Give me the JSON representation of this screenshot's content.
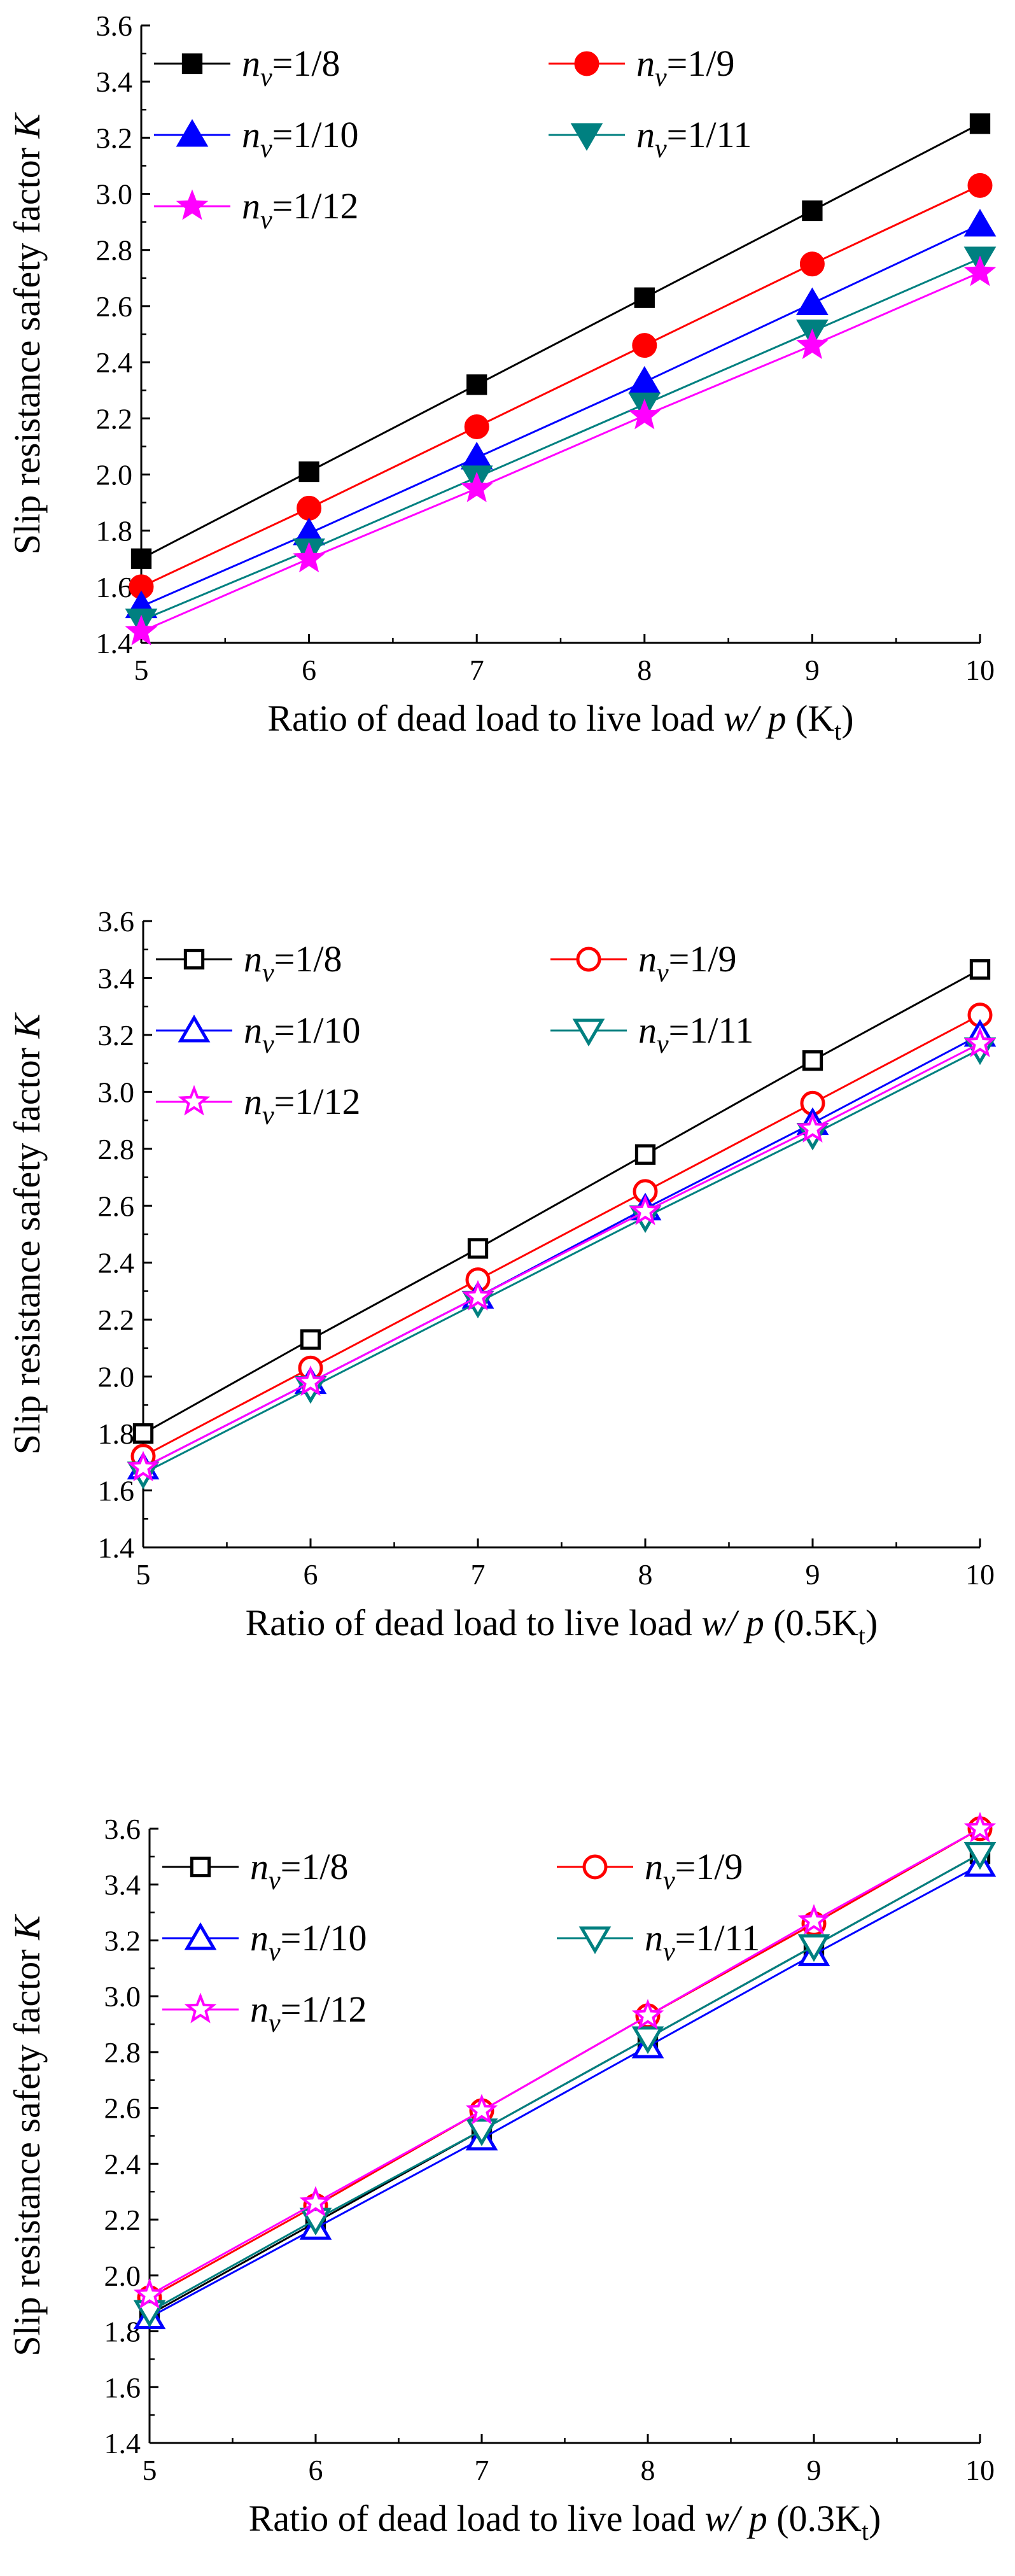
{
  "chart_data": [
    {
      "type": "line",
      "panel_label": "(K",
      "panel_label_sub": "t",
      "panel_label_end": ")",
      "xlabel": "Ratio of dead load to live load",
      "xlabel_var": "w/ p",
      "ylabel": "Slip resistance safety factor",
      "ylabel_var": "K",
      "xlim": [
        5,
        10
      ],
      "ylim": [
        1.4,
        3.6
      ],
      "x_ticks": [
        "5",
        "6",
        "7",
        "8",
        "9",
        "10"
      ],
      "y_ticks": [
        "1.4",
        "1.6",
        "1.8",
        "2.0",
        "2.2",
        "2.4",
        "2.6",
        "2.8",
        "3.0",
        "3.2",
        "3.4",
        "3.6"
      ],
      "grid": false,
      "legend_position": "top-left",
      "x": [
        5,
        6,
        7,
        8,
        9,
        10
      ],
      "series": [
        {
          "label_var": "n",
          "label_sub": "v",
          "label_rest": "=1/8",
          "color": "#000000",
          "marker": "square",
          "filled": true,
          "values": [
            1.7,
            2.01,
            2.32,
            2.63,
            2.94,
            3.25
          ]
        },
        {
          "label_var": "n",
          "label_sub": "v",
          "label_rest": "=1/9",
          "color": "#ff0000",
          "marker": "circle",
          "filled": true,
          "values": [
            1.6,
            1.88,
            2.17,
            2.46,
            2.75,
            3.03
          ]
        },
        {
          "label_var": "n",
          "label_sub": "v",
          "label_rest": "=1/10",
          "color": "#0000ff",
          "marker": "triangle-up",
          "filled": true,
          "values": [
            1.53,
            1.79,
            2.06,
            2.33,
            2.61,
            2.89
          ]
        },
        {
          "label_var": "n",
          "label_sub": "v",
          "label_rest": "=1/11",
          "color": "#008080",
          "marker": "triangle-down",
          "filled": true,
          "values": [
            1.48,
            1.73,
            1.99,
            2.25,
            2.51,
            2.77
          ]
        },
        {
          "label_var": "n",
          "label_sub": "v",
          "label_rest": "=1/12",
          "color": "#ff00ff",
          "marker": "star",
          "filled": true,
          "values": [
            1.44,
            1.7,
            1.95,
            2.21,
            2.46,
            2.72
          ]
        }
      ]
    },
    {
      "type": "line",
      "panel_label": "(0.5K",
      "panel_label_sub": "t",
      "panel_label_end": ")",
      "xlabel": "Ratio of dead load to live load",
      "xlabel_var": "w/ p",
      "ylabel": "Slip resistance safety factor",
      "ylabel_var": "K",
      "xlim": [
        5,
        10
      ],
      "ylim": [
        1.4,
        3.6
      ],
      "x_ticks": [
        "5",
        "6",
        "7",
        "8",
        "9",
        "10"
      ],
      "y_ticks": [
        "1.4",
        "1.6",
        "1.8",
        "2.0",
        "2.2",
        "2.4",
        "2.6",
        "2.8",
        "3.0",
        "3.2",
        "3.4",
        "3.6"
      ],
      "grid": false,
      "legend_position": "top-left",
      "x": [
        5,
        6,
        7,
        8,
        9,
        10
      ],
      "series": [
        {
          "label_var": "n",
          "label_sub": "v",
          "label_rest": "=1/8",
          "color": "#000000",
          "marker": "square",
          "filled": false,
          "values": [
            1.8,
            2.13,
            2.45,
            2.78,
            3.11,
            3.43
          ]
        },
        {
          "label_var": "n",
          "label_sub": "v",
          "label_rest": "=1/9",
          "color": "#ff0000",
          "marker": "circle",
          "filled": false,
          "values": [
            1.72,
            2.03,
            2.34,
            2.65,
            2.96,
            3.27
          ]
        },
        {
          "label_var": "n",
          "label_sub": "v",
          "label_rest": "=1/10",
          "color": "#0000ff",
          "marker": "triangle-up",
          "filled": false,
          "values": [
            1.68,
            1.98,
            2.28,
            2.59,
            2.89,
            3.2
          ]
        },
        {
          "label_var": "n",
          "label_sub": "v",
          "label_rest": "=1/11",
          "color": "#008080",
          "marker": "triangle-down",
          "filled": false,
          "values": [
            1.66,
            1.96,
            2.26,
            2.56,
            2.85,
            3.15
          ]
        },
        {
          "label_var": "n",
          "label_sub": "v",
          "label_rest": "=1/12",
          "color": "#ff00ff",
          "marker": "star",
          "filled": false,
          "values": [
            1.68,
            1.98,
            2.28,
            2.58,
            2.87,
            3.17
          ]
        }
      ]
    },
    {
      "type": "line",
      "panel_label": "(0.3K",
      "panel_label_sub": "t",
      "panel_label_end": ")",
      "xlabel": "Ratio of dead load to live load",
      "xlabel_var": "w/ p",
      "ylabel": "Slip resistance safety factor",
      "ylabel_var": "K",
      "xlim": [
        5,
        10
      ],
      "ylim": [
        1.4,
        3.6
      ],
      "x_ticks": [
        "5",
        "6",
        "7",
        "8",
        "9",
        "10"
      ],
      "y_ticks": [
        "1.4",
        "1.6",
        "1.8",
        "2.0",
        "2.2",
        "2.4",
        "2.6",
        "2.8",
        "3.0",
        "3.2",
        "3.4",
        "3.6"
      ],
      "grid": false,
      "legend_position": "top-left",
      "x": [
        5,
        6,
        7,
        8,
        9,
        10
      ],
      "series": [
        {
          "label_var": "n",
          "label_sub": "v",
          "label_rest": "=1/8",
          "color": "#000000",
          "marker": "square",
          "filled": false,
          "values": [
            1.86,
            2.19,
            2.52,
            2.85,
            3.18,
            3.51
          ]
        },
        {
          "label_var": "n",
          "label_sub": "v",
          "label_rest": "=1/9",
          "color": "#ff0000",
          "marker": "circle",
          "filled": false,
          "values": [
            1.92,
            2.25,
            2.59,
            2.93,
            3.26,
            3.6
          ]
        },
        {
          "label_var": "n",
          "label_sub": "v",
          "label_rest": "=1/10",
          "color": "#0000ff",
          "marker": "triangle-up",
          "filled": false,
          "values": [
            1.85,
            2.17,
            2.49,
            2.82,
            3.15,
            3.47
          ]
        },
        {
          "label_var": "n",
          "label_sub": "v",
          "label_rest": "=1/11",
          "color": "#008080",
          "marker": "triangle-down",
          "filled": false,
          "values": [
            1.87,
            2.2,
            2.52,
            2.85,
            3.18,
            3.51
          ]
        },
        {
          "label_var": "n",
          "label_sub": "v",
          "label_rest": "=1/12",
          "color": "#ff00ff",
          "marker": "star",
          "filled": false,
          "values": [
            1.93,
            2.26,
            2.59,
            2.93,
            3.27,
            3.6
          ]
        }
      ]
    }
  ]
}
